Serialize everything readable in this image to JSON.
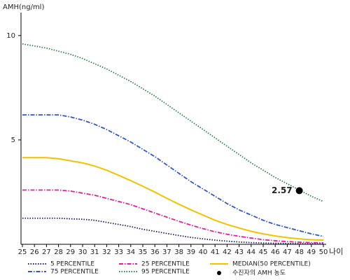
{
  "chart_data": {
    "type": "line",
    "y_label": "AMH(ng/ml)",
    "x_label": "나이",
    "x": [
      25,
      26,
      27,
      28,
      29,
      30,
      31,
      32,
      33,
      34,
      35,
      36,
      37,
      38,
      39,
      40,
      41,
      42,
      43,
      44,
      45,
      46,
      47,
      48,
      49,
      50
    ],
    "xlim": [
      25,
      50
    ],
    "xticks": [
      25,
      26,
      27,
      28,
      29,
      30,
      31,
      32,
      33,
      34,
      35,
      36,
      37,
      38,
      39,
      40,
      41,
      42,
      43,
      44,
      45,
      46,
      47,
      48,
      49,
      50
    ],
    "ylim": [
      0,
      11.1
    ],
    "yticks": [
      5,
      10
    ],
    "series": [
      {
        "name": "5 PERCENTILE",
        "color": "#1a1a6e",
        "style": "dotted",
        "values": [
          1.25,
          1.25,
          1.25,
          1.25,
          1.22,
          1.2,
          1.15,
          1.05,
          0.95,
          0.85,
          0.72,
          0.62,
          0.52,
          0.42,
          0.33,
          0.26,
          0.2,
          0.15,
          0.11,
          0.08,
          0.06,
          0.05,
          0.04,
          0.03,
          0.03,
          0.03
        ]
      },
      {
        "name": "25 PERCENTILE",
        "color": "#e0209a",
        "style": "dashdot",
        "values": [
          2.6,
          2.6,
          2.6,
          2.6,
          2.55,
          2.45,
          2.35,
          2.2,
          2.05,
          1.9,
          1.7,
          1.5,
          1.3,
          1.1,
          0.92,
          0.75,
          0.6,
          0.48,
          0.38,
          0.3,
          0.22,
          0.17,
          0.13,
          0.1,
          0.08,
          0.07
        ]
      },
      {
        "name": "MEDIAN(50 PERCENTILE)",
        "color": "#f2c200",
        "style": "solid",
        "values": [
          4.15,
          4.15,
          4.15,
          4.1,
          4.0,
          3.9,
          3.75,
          3.55,
          3.3,
          3.05,
          2.78,
          2.5,
          2.2,
          1.92,
          1.65,
          1.4,
          1.15,
          0.95,
          0.78,
          0.62,
          0.5,
          0.4,
          0.32,
          0.26,
          0.22,
          0.2
        ]
      },
      {
        "name": "75 PERCENTILE",
        "color": "#3355cc",
        "style": "dashdot",
        "values": [
          6.2,
          6.2,
          6.2,
          6.2,
          6.1,
          5.95,
          5.75,
          5.5,
          5.2,
          4.9,
          4.55,
          4.2,
          3.8,
          3.4,
          3.0,
          2.65,
          2.3,
          1.95,
          1.65,
          1.4,
          1.15,
          0.95,
          0.8,
          0.65,
          0.5,
          0.38
        ]
      },
      {
        "name": "95 PERCENTILE",
        "color": "#2e7d4f",
        "style": "dotted",
        "values": [
          9.6,
          9.5,
          9.4,
          9.25,
          9.1,
          8.9,
          8.65,
          8.4,
          8.1,
          7.8,
          7.45,
          7.1,
          6.7,
          6.3,
          5.9,
          5.5,
          5.1,
          4.7,
          4.3,
          3.9,
          3.55,
          3.2,
          2.9,
          2.6,
          2.3,
          2.05
        ]
      }
    ],
    "highlight": {
      "name": "수진자의 AMH 농도",
      "x": 48,
      "value": 2.57,
      "color": "#000000"
    }
  }
}
